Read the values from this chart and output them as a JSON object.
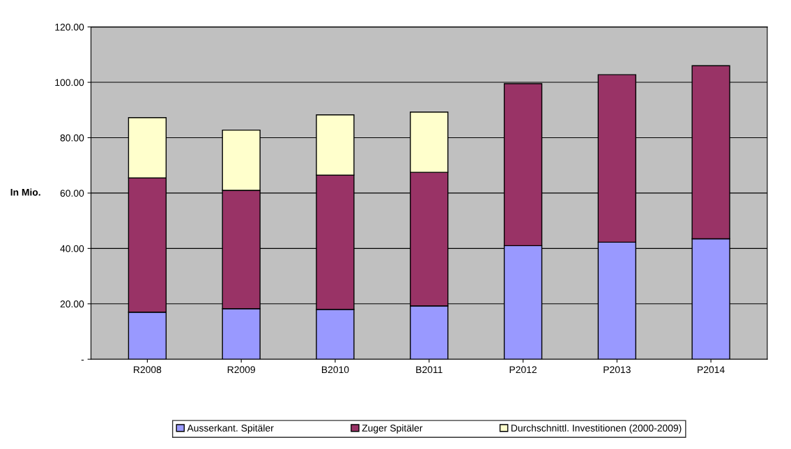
{
  "chart_data": {
    "type": "bar",
    "stacked": true,
    "ylabel": "In Mio.",
    "categories": [
      "R2008",
      "R2009",
      "B2010",
      "B2011",
      "P2012",
      "P2013",
      "P2014"
    ],
    "series": [
      {
        "name": "Ausserkant. Spitäler",
        "color": "#9999ff",
        "values": [
          17,
          18.25,
          18,
          19.25,
          41,
          42.25,
          43.5
        ]
      },
      {
        "name": "Zuger Spitäler",
        "color": "#993366",
        "values": [
          48.5,
          42.75,
          48.5,
          48.25,
          58.5,
          60.5,
          62.5
        ]
      },
      {
        "name": "Durchschnittl. Investitionen (2000-2009)",
        "color": "#ffffcc",
        "values": [
          21.75,
          21.75,
          21.75,
          21.75,
          null,
          null,
          null
        ]
      }
    ],
    "ylim": [
      0,
      120
    ],
    "yticks": [
      {
        "value": 0,
        "label": "-"
      },
      {
        "value": 20,
        "label": "20.00"
      },
      {
        "value": 40,
        "label": "40.00"
      },
      {
        "value": 60,
        "label": "60.00"
      },
      {
        "value": 80,
        "label": "80.00"
      },
      {
        "value": 100,
        "label": "100.00"
      },
      {
        "value": 120,
        "label": "120.00"
      }
    ],
    "grid": "y",
    "legend": "bottom"
  }
}
